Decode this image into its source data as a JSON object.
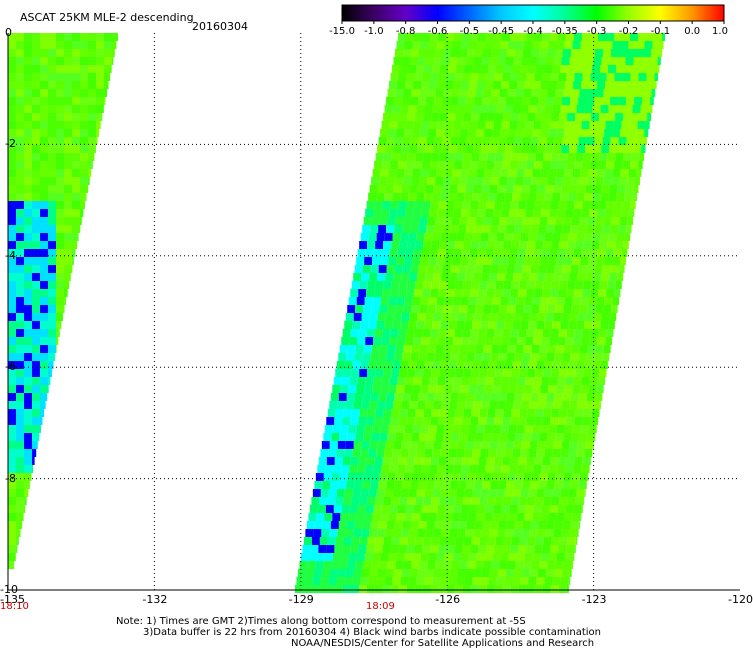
{
  "header": {
    "title": "ASCAT 25KM MLE-2 descending",
    "date": "20160304"
  },
  "colorbar": {
    "labels": [
      "-15.0",
      "-1.0",
      "-0.8",
      "-0.6",
      "-0.5",
      "-0.45",
      "-0.4",
      "-0.35",
      "-0.3",
      "-0.2",
      "-0.1",
      "0.0",
      "1.0"
    ],
    "colors": [
      "#000000",
      "#3c0064",
      "#6400c8",
      "#0000ff",
      "#0064ff",
      "#00c8ff",
      "#00ffff",
      "#00ff96",
      "#00ff00",
      "#96ff00",
      "#ffff00",
      "#ff9600",
      "#ff0000"
    ]
  },
  "axes": {
    "x_ticks": [
      "-135",
      "-132",
      "-129",
      "-126",
      "-123",
      "-120"
    ],
    "y_ticks": [
      "0",
      "-2",
      "-4",
      "-6",
      "-8",
      "-10"
    ],
    "x_range": [
      -135,
      -120
    ],
    "y_range": [
      0,
      -10
    ]
  },
  "times": [
    {
      "label": "18:10",
      "lon": -135
    },
    {
      "label": "18:09",
      "lon": -127.5
    }
  ],
  "notes": [
    "Note: 1) Times are GMT 2)Times along bottom correspond to measurement at -5S",
    "3)Data buffer is 22 hrs from 20160304 4) Black wind barbs indicate possible contamination",
    "NOAA/NESDIS/Center for Satellite Applications and Research"
  ]
}
